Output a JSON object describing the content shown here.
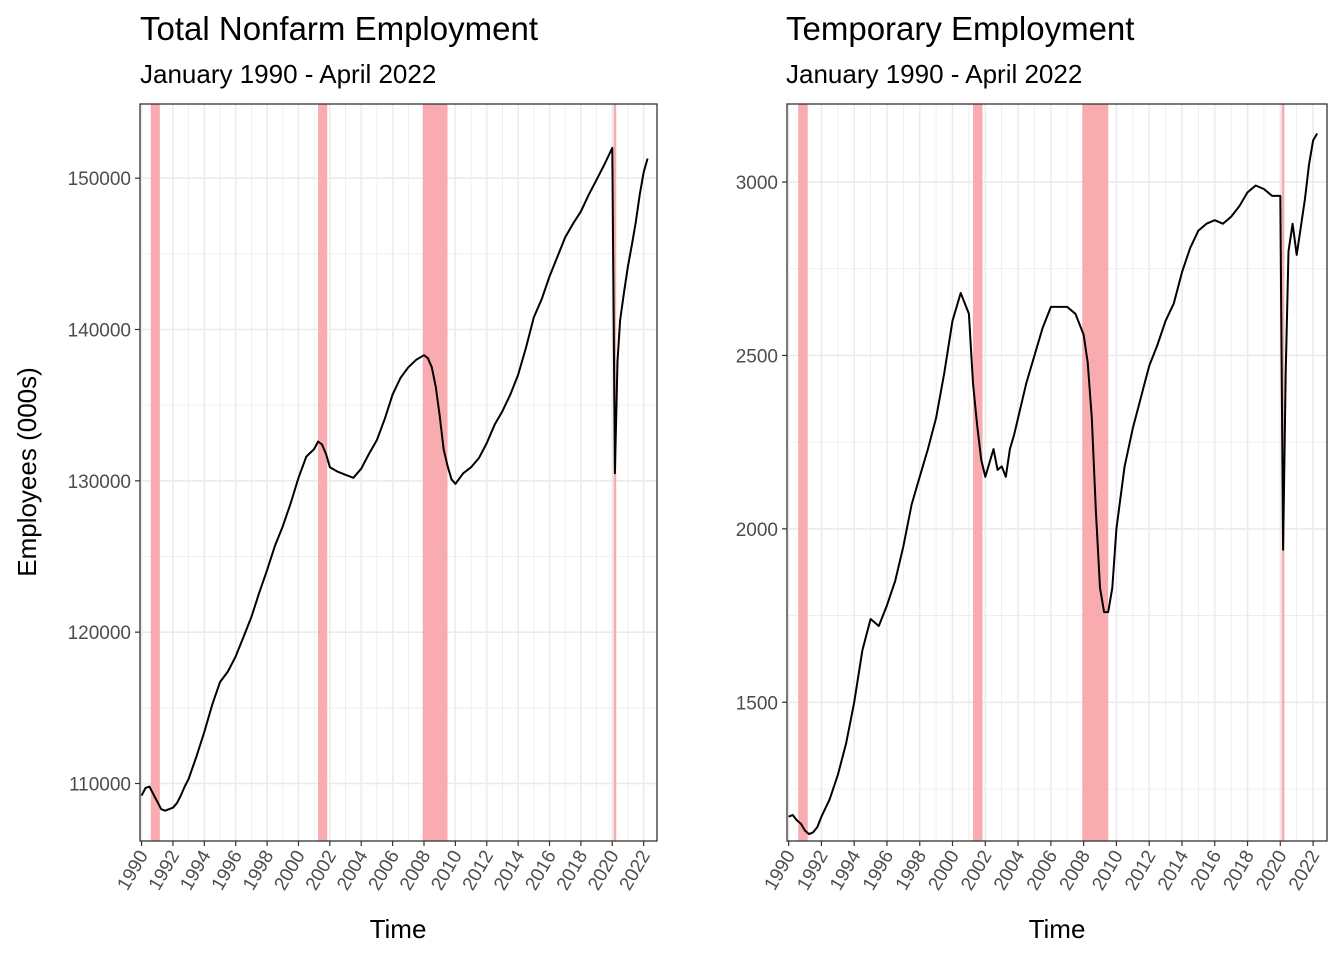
{
  "chart_data": [
    {
      "type": "line",
      "title": "Total Nonfarm Employment",
      "subtitle": "January 1990 - April 2022",
      "xlabel": "Time",
      "ylabel": "Employees (000s)",
      "xlim": [
        1989.9,
        2022.85
      ],
      "ylim": [
        106200,
        154900
      ],
      "x_ticks": [
        "1990",
        "1992",
        "1994",
        "1996",
        "1998",
        "2000",
        "2002",
        "2004",
        "2006",
        "2008",
        "2010",
        "2012",
        "2014",
        "2016",
        "2018",
        "2020",
        "2022"
      ],
      "y_ticks": [
        110000,
        120000,
        130000,
        140000,
        150000
      ],
      "recessions": [
        [
          1990.583,
          1991.167
        ],
        [
          2001.25,
          2001.833
        ],
        [
          2007.917,
          2009.5
        ],
        [
          2020.083,
          2020.25
        ]
      ],
      "line_color": "#000000",
      "recession_color": "#f8a5a8",
      "series": [
        {
          "x": [
            1990.0,
            1990.25,
            1990.5,
            1990.75,
            1991.0,
            1991.25,
            1991.5,
            1991.75,
            1992.0,
            1992.25,
            1992.5,
            1992.75,
            1993.0,
            1993.5,
            1994.0,
            1994.5,
            1995.0,
            1995.5,
            1996.0,
            1996.5,
            1997.0,
            1997.5,
            1998.0,
            1998.5,
            1999.0,
            1999.5,
            2000.0,
            2000.5,
            2001.0,
            2001.25,
            2001.5,
            2001.75,
            2002.0,
            2002.5,
            2003.0,
            2003.5,
            2004.0,
            2004.5,
            2005.0,
            2005.5,
            2006.0,
            2006.5,
            2007.0,
            2007.5,
            2008.0,
            2008.25,
            2008.5,
            2008.75,
            2009.0,
            2009.25,
            2009.5,
            2009.75,
            2010.0,
            2010.5,
            2011.0,
            2011.5,
            2012.0,
            2012.5,
            2013.0,
            2013.5,
            2014.0,
            2014.5,
            2015.0,
            2015.5,
            2016.0,
            2016.5,
            2017.0,
            2017.5,
            2018.0,
            2018.5,
            2019.0,
            2019.5,
            2020.0,
            2020.17,
            2020.33,
            2020.5,
            2020.75,
            2021.0,
            2021.25,
            2021.5,
            2021.75,
            2022.0,
            2022.25
          ],
          "values": [
            109200,
            109700,
            109800,
            109300,
            108800,
            108300,
            108200,
            108300,
            108400,
            108700,
            109200,
            109800,
            110300,
            111800,
            113400,
            115200,
            116700,
            117400,
            118400,
            119700,
            121000,
            122600,
            124100,
            125700,
            127000,
            128500,
            130200,
            131600,
            132100,
            132600,
            132400,
            131800,
            130900,
            130600,
            130400,
            130200,
            130800,
            131800,
            132700,
            134100,
            135700,
            136800,
            137500,
            138000,
            138300,
            138100,
            137500,
            136200,
            134300,
            132100,
            131000,
            130100,
            129800,
            130500,
            130900,
            131500,
            132500,
            133700,
            134600,
            135700,
            137000,
            138800,
            140800,
            142000,
            143500,
            144800,
            146100,
            147000,
            147800,
            148900,
            149900,
            150900,
            152000,
            130500,
            137900,
            140600,
            142500,
            144200,
            145600,
            147100,
            148900,
            150400,
            151300
          ]
        }
      ]
    },
    {
      "type": "line",
      "title": "Temporary Employment",
      "subtitle": "January 1990 - April 2022",
      "xlabel": "Time",
      "ylabel": "",
      "xlim": [
        1989.9,
        2022.85
      ],
      "ylim": [
        1100,
        3225
      ],
      "x_ticks": [
        "1990",
        "1992",
        "1994",
        "1996",
        "1998",
        "2000",
        "2002",
        "2004",
        "2006",
        "2008",
        "2010",
        "2012",
        "2014",
        "2016",
        "2018",
        "2020",
        "2022"
      ],
      "y_ticks": [
        1500,
        2000,
        2500,
        3000
      ],
      "recessions": [
        [
          1990.583,
          1991.167
        ],
        [
          2001.25,
          2001.833
        ],
        [
          2007.917,
          2009.5
        ],
        [
          2020.083,
          2020.25
        ]
      ],
      "line_color": "#000000",
      "recession_color": "#f8a5a8",
      "series": [
        {
          "x": [
            1990.0,
            1990.25,
            1990.5,
            1990.75,
            1991.0,
            1991.25,
            1991.5,
            1991.75,
            1992.0,
            1992.5,
            1993.0,
            1993.5,
            1994.0,
            1994.5,
            1995.0,
            1995.5,
            1996.0,
            1996.5,
            1997.0,
            1997.5,
            1998.0,
            1998.5,
            1999.0,
            1999.5,
            2000.0,
            2000.25,
            2000.5,
            2000.75,
            2001.0,
            2001.25,
            2001.5,
            2001.75,
            2002.0,
            2002.25,
            2002.5,
            2002.75,
            2003.0,
            2003.25,
            2003.5,
            2003.75,
            2004.0,
            2004.5,
            2005.0,
            2005.5,
            2006.0,
            2006.5,
            2007.0,
            2007.5,
            2008.0,
            2008.25,
            2008.5,
            2008.75,
            2009.0,
            2009.25,
            2009.5,
            2009.75,
            2010.0,
            2010.5,
            2011.0,
            2011.5,
            2012.0,
            2012.5,
            2013.0,
            2013.5,
            2014.0,
            2014.5,
            2015.0,
            2015.5,
            2016.0,
            2016.5,
            2017.0,
            2017.5,
            2018.0,
            2018.5,
            2019.0,
            2019.5,
            2020.0,
            2020.17,
            2020.33,
            2020.5,
            2020.75,
            2021.0,
            2021.25,
            2021.5,
            2021.75,
            2022.0,
            2022.25
          ],
          "values": [
            1170,
            1175,
            1160,
            1150,
            1130,
            1120,
            1125,
            1140,
            1170,
            1220,
            1290,
            1380,
            1500,
            1650,
            1740,
            1720,
            1780,
            1850,
            1950,
            2070,
            2150,
            2230,
            2320,
            2450,
            2600,
            2640,
            2680,
            2650,
            2620,
            2420,
            2300,
            2200,
            2150,
            2190,
            2230,
            2170,
            2180,
            2150,
            2230,
            2270,
            2320,
            2420,
            2500,
            2580,
            2640,
            2640,
            2640,
            2620,
            2560,
            2480,
            2320,
            2050,
            1830,
            1760,
            1760,
            1830,
            2000,
            2180,
            2290,
            2380,
            2470,
            2530,
            2600,
            2650,
            2740,
            2810,
            2860,
            2880,
            2890,
            2880,
            2900,
            2930,
            2970,
            2990,
            2980,
            2960,
            2960,
            1940,
            2450,
            2800,
            2880,
            2790,
            2870,
            2950,
            3050,
            3120,
            3140
          ]
        }
      ]
    }
  ]
}
